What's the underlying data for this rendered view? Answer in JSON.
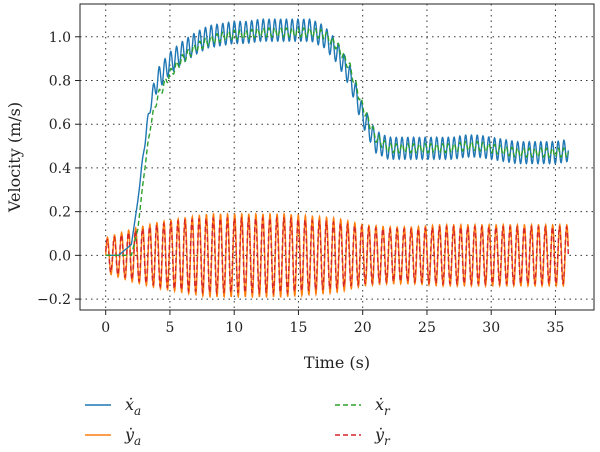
{
  "chart_data": {
    "type": "line",
    "title": "",
    "xlabel": "Time (s)",
    "ylabel": "Velocity (m/s)",
    "xlim": [
      -2,
      38
    ],
    "ylim": [
      -0.25,
      1.15
    ],
    "xticks": [
      "0",
      "5",
      "10",
      "15",
      "20",
      "25",
      "30",
      "35"
    ],
    "yticks": [
      "−0.2",
      "0.0",
      "0.2",
      "0.4",
      "0.6",
      "0.8",
      "1.0"
    ],
    "grid": true,
    "grid_style": "dotted",
    "legend_position": "below",
    "series": [
      {
        "name": "ẋa",
        "color": "#1f77b4",
        "dash": "solid",
        "x": [
          0,
          1,
          2,
          2.5,
          3,
          3.5,
          4,
          5,
          6,
          7,
          8,
          9,
          10,
          11,
          12,
          13,
          14,
          15,
          16,
          17,
          18,
          19,
          20,
          21,
          22,
          23,
          24,
          25,
          26,
          27,
          28,
          29,
          30,
          31,
          32,
          33,
          34,
          35,
          36
        ],
        "y": [
          0.0,
          0.0,
          0.05,
          0.25,
          0.5,
          0.7,
          0.8,
          0.88,
          0.93,
          0.97,
          1.0,
          1.01,
          1.02,
          1.02,
          1.03,
          1.03,
          1.03,
          1.03,
          1.03,
          1.0,
          0.93,
          0.82,
          0.64,
          0.52,
          0.49,
          0.49,
          0.49,
          0.49,
          0.49,
          0.49,
          0.5,
          0.5,
          0.49,
          0.48,
          0.47,
          0.47,
          0.47,
          0.47,
          0.48
        ],
        "oscillation_amplitude": 0.05
      },
      {
        "name": "ẏa",
        "color": "#ff7f0e",
        "dash": "solid",
        "x": [
          0,
          2,
          4,
          6,
          8,
          10,
          12,
          14,
          16,
          18,
          20,
          22,
          24,
          26,
          28,
          30,
          32,
          34,
          36
        ],
        "y": [
          0.0,
          0.0,
          0.0,
          0.0,
          0.0,
          0.0,
          0.0,
          0.0,
          0.0,
          0.0,
          0.0,
          0.0,
          0.0,
          0.0,
          0.0,
          0.0,
          0.0,
          0.0,
          0.0
        ],
        "oscillation_amplitude": [
          0.08,
          0.12,
          0.15,
          0.17,
          0.19,
          0.19,
          0.19,
          0.19,
          0.18,
          0.17,
          0.14,
          0.13,
          0.13,
          0.14,
          0.14,
          0.14,
          0.14,
          0.14,
          0.14
        ],
        "oscillation_period": 0.55
      },
      {
        "name": "ẋr",
        "color": "#2ca02c",
        "dash": "dashed",
        "x": [
          0,
          1,
          2,
          2.5,
          3,
          3.5,
          4,
          5,
          6,
          7,
          8,
          9,
          10,
          11,
          12,
          13,
          14,
          15,
          16,
          17,
          18,
          19,
          20,
          21,
          22,
          23,
          24,
          25,
          26,
          27,
          28,
          29,
          30,
          31,
          32,
          33,
          34,
          35,
          36
        ],
        "y": [
          0.0,
          0.0,
          0.0,
          0.12,
          0.38,
          0.6,
          0.72,
          0.83,
          0.9,
          0.95,
          0.98,
          1.0,
          1.01,
          1.01,
          1.02,
          1.02,
          1.02,
          1.02,
          1.02,
          1.01,
          0.96,
          0.86,
          0.68,
          0.54,
          0.49,
          0.49,
          0.49,
          0.49,
          0.49,
          0.49,
          0.5,
          0.5,
          0.49,
          0.48,
          0.47,
          0.47,
          0.47,
          0.47,
          0.47
        ],
        "oscillation_amplitude": 0.02
      },
      {
        "name": "ẏr",
        "color": "#d62728",
        "dash": "dashed",
        "x": [
          0,
          2,
          4,
          6,
          8,
          10,
          12,
          14,
          16,
          18,
          20,
          22,
          24,
          26,
          28,
          30,
          32,
          34,
          36
        ],
        "y": [
          0.0,
          0.0,
          0.0,
          0.0,
          0.0,
          0.0,
          0.0,
          0.0,
          0.0,
          0.0,
          0.0,
          0.0,
          0.0,
          0.0,
          0.0,
          0.0,
          0.0,
          0.0,
          0.0
        ],
        "oscillation_amplitude": [
          0.07,
          0.11,
          0.14,
          0.16,
          0.17,
          0.17,
          0.17,
          0.17,
          0.16,
          0.15,
          0.13,
          0.12,
          0.12,
          0.13,
          0.13,
          0.13,
          0.13,
          0.13,
          0.13
        ],
        "oscillation_period": 0.55
      }
    ],
    "legend": [
      {
        "symbol": "ẋ",
        "sub": "a",
        "series": 0
      },
      {
        "symbol": "ẋ",
        "sub": "r",
        "series": 2
      },
      {
        "symbol": "ẏ",
        "sub": "a",
        "series": 1
      },
      {
        "symbol": "ẏ",
        "sub": "r",
        "series": 3
      }
    ]
  }
}
